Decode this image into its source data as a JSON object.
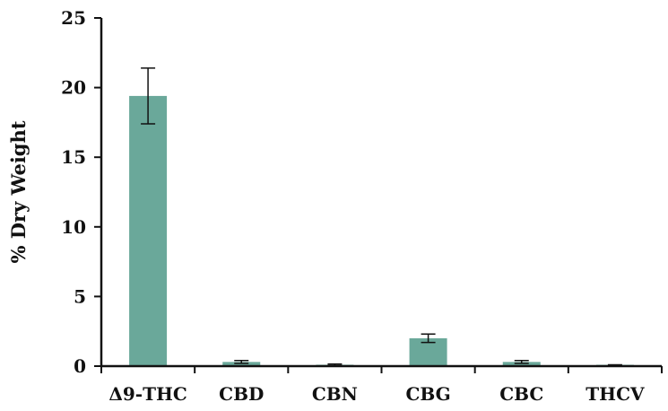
{
  "chart_data": {
    "type": "bar",
    "title": "",
    "xlabel": "",
    "ylabel": "% Dry Weight",
    "categories": [
      "Δ9-THC",
      "CBD",
      "CBN",
      "CBG",
      "CBC",
      "THCV"
    ],
    "values": [
      19.4,
      0.3,
      0.1,
      2.0,
      0.3,
      0.05
    ],
    "errors": [
      2.0,
      0.1,
      0.05,
      0.3,
      0.1,
      0.05
    ],
    "ylim": [
      0,
      25
    ],
    "yticks": [
      "0",
      "5",
      "10",
      "15",
      "20",
      "25"
    ],
    "grid": false,
    "legend": "none",
    "colors": {
      "bar": "#6aa89a",
      "axis": "#111111",
      "error": "#111111"
    }
  }
}
